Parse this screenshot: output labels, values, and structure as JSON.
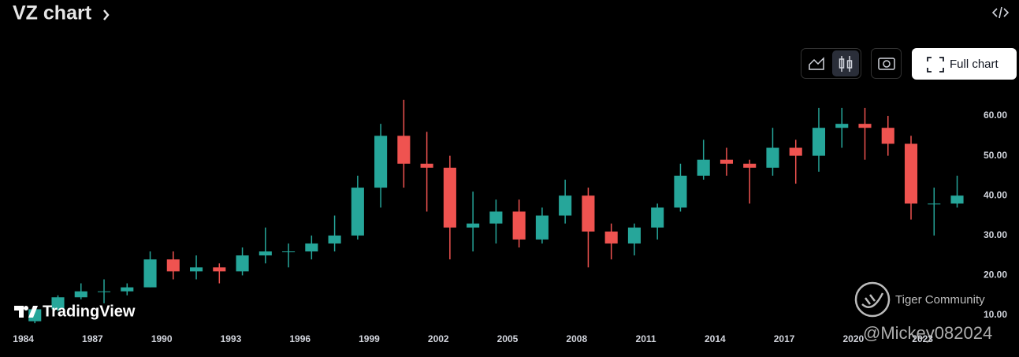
{
  "chart_data": {
    "type": "candlestick",
    "title": "VZ chart",
    "x": [
      1984,
      1985,
      1986,
      1987,
      1988,
      1989,
      1990,
      1991,
      1992,
      1993,
      1994,
      1995,
      1996,
      1997,
      1998,
      1999,
      2000,
      2001,
      2002,
      2003,
      2004,
      2005,
      2006,
      2007,
      2008,
      2009,
      2010,
      2011,
      2012,
      2013,
      2014,
      2015,
      2016,
      2017,
      2018,
      2019,
      2020,
      2021,
      2022,
      2023,
      2024
    ],
    "open": [
      8.5,
      11.5,
      14.5,
      16,
      16,
      17,
      24,
      21,
      22,
      21,
      25,
      26,
      26,
      28,
      30,
      42,
      55,
      48,
      47,
      32,
      33,
      36,
      29,
      35,
      40,
      31,
      28,
      32,
      37,
      45,
      49,
      48,
      47,
      52,
      50,
      57,
      58,
      57,
      53,
      38,
      38
    ],
    "high": [
      12,
      15,
      18,
      19,
      18,
      26,
      26,
      25,
      23,
      27,
      32,
      28,
      30,
      35,
      45,
      58,
      64,
      56,
      50,
      41,
      39,
      39,
      37,
      44,
      42,
      33,
      33,
      38,
      48,
      54,
      52,
      49,
      57,
      54,
      62,
      62,
      62,
      60,
      55,
      42,
      45
    ],
    "low": [
      8,
      11,
      14,
      13,
      15,
      17,
      19,
      19,
      18,
      20,
      23,
      22,
      24,
      26,
      29,
      37,
      42,
      36,
      24,
      26,
      28,
      27,
      28,
      33,
      22,
      24,
      25,
      29,
      36,
      44,
      45,
      38,
      45,
      43,
      46,
      52,
      49,
      50,
      34,
      30,
      37
    ],
    "close": [
      11.5,
      14.5,
      16,
      16,
      17,
      24,
      21,
      22,
      21,
      25,
      26,
      26,
      28,
      30,
      42,
      55,
      48,
      47,
      32,
      33,
      36,
      29,
      35,
      40,
      31,
      28,
      32,
      37,
      45,
      49,
      48,
      47,
      52,
      50,
      57,
      58,
      57,
      53,
      38,
      38,
      40
    ],
    "up_color": "#26a69a",
    "down_color": "#ef5350",
    "xlim": [
      1983.5,
      2025.2
    ],
    "xticks": [
      1984,
      1987,
      1990,
      1993,
      1996,
      1999,
      2002,
      2005,
      2008,
      2011,
      2014,
      2017,
      2020,
      2023
    ],
    "ylim": [
      2,
      67
    ],
    "yticks": [
      {
        "value": 10,
        "label": "10.00"
      },
      {
        "value": 20,
        "label": "20.00"
      },
      {
        "value": 30,
        "label": "30.00"
      },
      {
        "value": 40,
        "label": "40.00"
      },
      {
        "value": 50,
        "label": "50.00"
      },
      {
        "value": 60,
        "label": "60.00"
      }
    ],
    "grid": false
  },
  "ui": {
    "full_chart": "Full chart",
    "brand": "TradingView",
    "community": "Tiger Community",
    "handle": "@Mickey082024"
  }
}
